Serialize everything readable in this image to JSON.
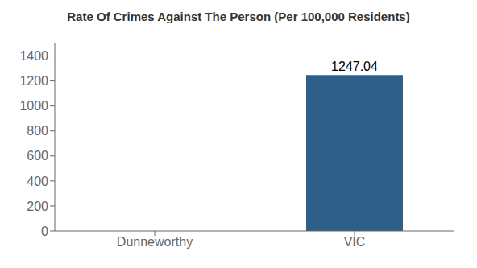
{
  "chart_data": {
    "type": "bar",
    "title": "Rate Of Crimes Against The Person (Per 100,000 Residents)",
    "categories": [
      "Dunneworthy",
      "VIC"
    ],
    "values": [
      0,
      1247.04
    ],
    "colors": [
      "#2e4a7a",
      "#2e5f8a"
    ],
    "ylim": [
      0,
      1500
    ],
    "yticks": [
      0,
      200,
      400,
      600,
      800,
      1000,
      1200,
      1400
    ],
    "grid": false,
    "data_labels": true
  }
}
